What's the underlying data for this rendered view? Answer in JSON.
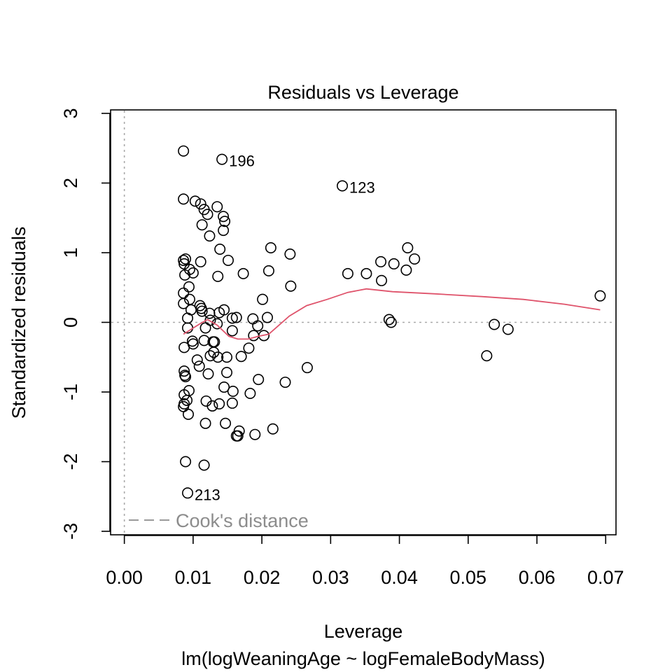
{
  "chart_data": {
    "type": "scatter",
    "title": "Residuals vs Leverage",
    "xlabel": "Leverage",
    "subtitle": "lm(logWeaningAge ~ logFemaleBodyMass)",
    "ylabel": "Standardized residuals",
    "xlim": [
      -0.002,
      0.0715
    ],
    "ylim": [
      -3.05,
      3.05
    ],
    "x_ticks": [
      "0.00",
      "0.01",
      "0.02",
      "0.03",
      "0.04",
      "0.05",
      "0.06",
      "0.07"
    ],
    "x_tick_values": [
      0,
      0.01,
      0.02,
      0.03,
      0.04,
      0.05,
      0.06,
      0.07
    ],
    "y_ticks": [
      "-3",
      "-2",
      "-1",
      "0",
      "1",
      "2",
      "3"
    ],
    "y_tick_values": [
      -3,
      -2,
      -1,
      0,
      1,
      2,
      3
    ],
    "legend": {
      "label": "Cook's distance",
      "placement": "bottom-left"
    },
    "colors": {
      "points": "#000000",
      "smooth": "#DF536B",
      "reference": "#A9A9A9",
      "legend_text": "#8C8C8C"
    },
    "labels": [
      {
        "text": "196",
        "x": 0.0142,
        "y": 2.34
      },
      {
        "text": "123",
        "x": 0.0317,
        "y": 1.96
      },
      {
        "text": "213",
        "x": 0.0092,
        "y": -2.45
      }
    ],
    "points": [
      [
        0.0086,
        2.46
      ],
      [
        0.0142,
        2.34
      ],
      [
        0.0317,
        1.96
      ],
      [
        0.0086,
        1.77
      ],
      [
        0.0103,
        1.74
      ],
      [
        0.0111,
        1.7
      ],
      [
        0.0116,
        1.62
      ],
      [
        0.0121,
        1.55
      ],
      [
        0.0135,
        1.66
      ],
      [
        0.0144,
        1.52
      ],
      [
        0.0146,
        1.45
      ],
      [
        0.0113,
        1.4
      ],
      [
        0.0144,
        1.32
      ],
      [
        0.0124,
        1.24
      ],
      [
        0.0139,
        1.05
      ],
      [
        0.0213,
        1.07
      ],
      [
        0.0241,
        0.98
      ],
      [
        0.0412,
        1.07
      ],
      [
        0.0086,
        0.89
      ],
      [
        0.0089,
        0.91
      ],
      [
        0.0087,
        0.84
      ],
      [
        0.0111,
        0.87
      ],
      [
        0.0151,
        0.89
      ],
      [
        0.0095,
        0.76
      ],
      [
        0.01,
        0.71
      ],
      [
        0.0088,
        0.68
      ],
      [
        0.0136,
        0.66
      ],
      [
        0.0173,
        0.7
      ],
      [
        0.021,
        0.74
      ],
      [
        0.0325,
        0.7
      ],
      [
        0.0352,
        0.7
      ],
      [
        0.0373,
        0.87
      ],
      [
        0.0392,
        0.84
      ],
      [
        0.0422,
        0.91
      ],
      [
        0.041,
        0.75
      ],
      [
        0.0374,
        0.6
      ],
      [
        0.0094,
        0.51
      ],
      [
        0.0242,
        0.52
      ],
      [
        0.0086,
        0.42
      ],
      [
        0.0095,
        0.33
      ],
      [
        0.0086,
        0.27
      ],
      [
        0.011,
        0.24
      ],
      [
        0.0112,
        0.2
      ],
      [
        0.0097,
        0.18
      ],
      [
        0.0113,
        0.16
      ],
      [
        0.0124,
        0.13
      ],
      [
        0.0138,
        0.14
      ],
      [
        0.0145,
        0.18
      ],
      [
        0.0201,
        0.33
      ],
      [
        0.0692,
        0.38
      ],
      [
        0.0092,
        0.06
      ],
      [
        0.0125,
        0.03
      ],
      [
        0.0135,
        -0.02
      ],
      [
        0.0157,
        0.06
      ],
      [
        0.0163,
        0.07
      ],
      [
        0.0187,
        0.05
      ],
      [
        0.0208,
        0.07
      ],
      [
        0.0385,
        0.04
      ],
      [
        0.0388,
        0.0
      ],
      [
        0.0538,
        -0.03
      ],
      [
        0.0558,
        -0.1
      ],
      [
        0.0092,
        -0.08
      ],
      [
        0.0118,
        -0.08
      ],
      [
        0.0157,
        -0.12
      ],
      [
        0.0194,
        -0.05
      ],
      [
        0.0099,
        -0.27
      ],
      [
        0.01,
        -0.31
      ],
      [
        0.0116,
        -0.26
      ],
      [
        0.0129,
        -0.28
      ],
      [
        0.0131,
        -0.28
      ],
      [
        0.0087,
        -0.36
      ],
      [
        0.0188,
        -0.19
      ],
      [
        0.0203,
        -0.19
      ],
      [
        0.0181,
        -0.37
      ],
      [
        0.013,
        -0.43
      ],
      [
        0.0125,
        -0.48
      ],
      [
        0.0136,
        -0.5
      ],
      [
        0.0149,
        -0.5
      ],
      [
        0.017,
        -0.49
      ],
      [
        0.0106,
        -0.54
      ],
      [
        0.0109,
        -0.63
      ],
      [
        0.0122,
        -0.74
      ],
      [
        0.0149,
        -0.72
      ],
      [
        0.0266,
        -0.65
      ],
      [
        0.0527,
        -0.48
      ],
      [
        0.0087,
        -0.7
      ],
      [
        0.0088,
        -0.76
      ],
      [
        0.0089,
        -0.78
      ],
      [
        0.0195,
        -0.82
      ],
      [
        0.0145,
        -0.93
      ],
      [
        0.0234,
        -0.86
      ],
      [
        0.0094,
        -0.98
      ],
      [
        0.0158,
        -0.99
      ],
      [
        0.0087,
        -1.04
      ],
      [
        0.0091,
        -1.12
      ],
      [
        0.0087,
        -1.17
      ],
      [
        0.0086,
        -1.21
      ],
      [
        0.0119,
        -1.13
      ],
      [
        0.0128,
        -1.2
      ],
      [
        0.0138,
        -1.17
      ],
      [
        0.0157,
        -1.16
      ],
      [
        0.0183,
        -1.02
      ],
      [
        0.0093,
        -1.32
      ],
      [
        0.0118,
        -1.45
      ],
      [
        0.0147,
        -1.45
      ],
      [
        0.0167,
        -1.56
      ],
      [
        0.0163,
        -1.63
      ],
      [
        0.0165,
        -1.63
      ],
      [
        0.019,
        -1.61
      ],
      [
        0.0216,
        -1.53
      ],
      [
        0.0089,
        -2.0
      ],
      [
        0.0116,
        -2.05
      ],
      [
        0.0092,
        -2.45
      ]
    ],
    "smooth": [
      [
        0.0086,
        -0.17
      ],
      [
        0.011,
        -0.02
      ],
      [
        0.0121,
        0.04
      ],
      [
        0.0135,
        -0.04
      ],
      [
        0.0152,
        -0.2
      ],
      [
        0.0165,
        -0.24
      ],
      [
        0.018,
        -0.24
      ],
      [
        0.0195,
        -0.2
      ],
      [
        0.021,
        -0.17
      ],
      [
        0.024,
        0.09
      ],
      [
        0.0265,
        0.24
      ],
      [
        0.0295,
        0.33
      ],
      [
        0.0325,
        0.43
      ],
      [
        0.0352,
        0.48
      ],
      [
        0.039,
        0.44
      ],
      [
        0.045,
        0.41
      ],
      [
        0.052,
        0.37
      ],
      [
        0.058,
        0.33
      ],
      [
        0.064,
        0.26
      ],
      [
        0.0692,
        0.18
      ]
    ]
  }
}
